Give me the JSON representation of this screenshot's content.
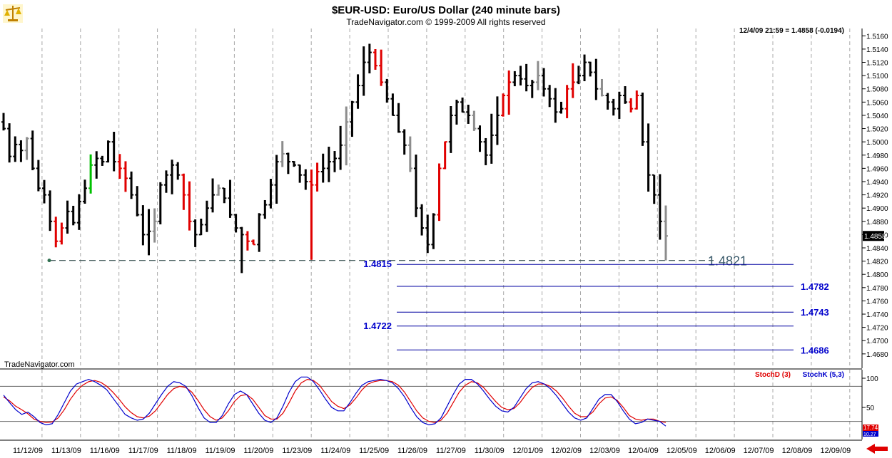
{
  "header": {
    "title": "$EUR-USD:  Euro/US Dollar  (240 minute bars)",
    "copyright": "TradeNavigator.com © 1999-2009 All rights reserved",
    "quote": "12/4/09 21:59 = 1.4858 (-0.0194)",
    "watermark": "TradeNavigator.com"
  },
  "colors": {
    "up_bar": "#000000",
    "down_bar": "#e00000",
    "neutral_bar": "#8c8c8c",
    "green_bar": "#00c000",
    "target_lines": "#0000a0",
    "target_labels": "#0000cc",
    "support_line": "#334d4d",
    "stoch_d": "#e00000",
    "stoch_k": "#0000cc"
  },
  "icons": {
    "logo": "scales-logo-icon",
    "scroll_arrow": "left-arrow-icon"
  },
  "chart_data": [
    {
      "type": "ohlc",
      "title": "$EUR-USD:  Euro/US Dollar  (240 minute bars)",
      "ylim": [
        1.4668,
        1.517
      ],
      "y_ticks": [
        "1.5160",
        "1.5140",
        "1.5120",
        "1.5100",
        "1.5080",
        "1.5060",
        "1.5040",
        "1.5020",
        "1.5000",
        "1.4980",
        "1.4960",
        "1.4940",
        "1.4920",
        "1.4900",
        "1.4880",
        "1.4860",
        "1.4840",
        "1.4820",
        "1.4800",
        "1.4780",
        "1.4760",
        "1.4740",
        "1.4720",
        "1.4700",
        "1.4680"
      ],
      "x_ticks": [
        "11/12/09",
        "11/13/09",
        "11/16/09",
        "11/17/09",
        "11/18/09",
        "11/19/09",
        "11/20/09",
        "11/23/09",
        "11/24/09",
        "11/25/09",
        "11/26/09",
        "11/27/09",
        "11/30/09",
        "12/01/09",
        "12/02/09",
        "12/03/09",
        "12/04/09",
        "12/05/09",
        "12/06/09",
        "12/07/09",
        "12/08/09",
        "12/09/09"
      ],
      "last_price_label": "1.4858",
      "grid": "vertical dashed",
      "support": {
        "value": 1.4821,
        "label": "1.4821"
      },
      "targets": [
        {
          "value": 1.4815,
          "label": "1.4815",
          "label_side": "left"
        },
        {
          "value": 1.4782,
          "label": "1.4782",
          "label_side": "right"
        },
        {
          "value": 1.4743,
          "label": "1.4743",
          "label_side": "right"
        },
        {
          "value": 1.4722,
          "label": "1.4722",
          "label_side": "left"
        },
        {
          "value": 1.4686,
          "label": "1.4686",
          "label_side": "right"
        }
      ],
      "bar_anchors_close": [
        1.502,
        1.4978,
        1.4996,
        1.4987,
        1.5005,
        1.496,
        1.493,
        1.492,
        1.488,
        1.485,
        1.487,
        1.4895,
        1.4878,
        1.491,
        1.493,
        1.4965,
        1.4975,
        1.497,
        1.5,
        1.497,
        1.496,
        1.4945,
        1.492,
        1.489,
        1.486,
        1.4865,
        1.488,
        1.4935,
        1.495,
        1.4965,
        1.495,
        1.492,
        1.488,
        1.486,
        1.4875,
        1.49,
        1.492,
        1.493,
        1.4915,
        1.489,
        1.487,
        1.486,
        1.485,
        1.4845,
        1.489,
        1.4905,
        1.4935,
        1.497,
        1.4982,
        1.497,
        1.4965,
        1.495,
        1.494,
        1.4935,
        1.4955,
        1.496,
        1.497,
        1.4975,
        1.4995,
        1.503,
        1.506,
        1.5085,
        1.512,
        1.5135,
        1.5115,
        1.509,
        1.5065,
        1.504,
        1.5015,
        1.4995,
        1.496,
        1.49,
        1.487,
        1.4845,
        1.489,
        1.496,
        1.5,
        1.504,
        1.506,
        1.5045,
        1.504,
        1.502,
        1.5,
        1.498,
        1.501,
        1.504,
        1.507,
        1.509,
        1.51,
        1.5095,
        1.5085,
        1.509,
        1.51,
        1.508,
        1.5065,
        1.5045,
        1.505,
        1.508,
        1.509,
        1.51,
        1.512,
        1.5105,
        1.508,
        1.507,
        1.506,
        1.505,
        1.507,
        1.506,
        1.505,
        1.507,
        1.5,
        1.495,
        1.492,
        1.488,
        1.4858
      ],
      "bar_anchors_low": [
        1.496,
        1.495,
        1.496,
        1.493,
        1.486,
        1.488,
        1.4821,
        1.483,
        1.485,
        1.4855,
        1.4822,
        1.483,
        1.485,
        1.49,
        1.492,
        1.493,
        1.492,
        1.49,
        1.487,
        1.485,
        1.482,
        1.4808,
        1.484,
        1.485,
        1.485,
        1.487,
        1.49,
        1.489,
        1.487,
        1.486,
        1.484,
        1.484,
        1.486,
        1.488,
        1.486,
        1.484,
        1.48,
        1.482,
        1.483,
        1.487,
        1.49,
        1.492,
        1.493,
        1.495,
        1.493,
        1.492,
        1.489,
        1.492,
        1.494,
        1.496,
        1.498,
        1.502,
        1.505,
        1.508,
        1.506,
        1.502,
        1.496,
        1.495,
        1.483,
        1.4822,
        1.486,
        1.487,
        1.49,
        1.496,
        1.5,
        1.498,
        1.497,
        1.498,
        1.497,
        1.5,
        1.505,
        1.506,
        1.504,
        1.504,
        1.503,
        1.504,
        1.506,
        1.503,
        1.5,
        1.494,
        1.49,
        1.486,
        1.4821
      ]
    },
    {
      "type": "line",
      "title": "Stochastic",
      "ylim": [
        0,
        100
      ],
      "y_ticks": [
        "100",
        "50"
      ],
      "guides": [
        80,
        20
      ],
      "series": [
        {
          "name": "StochD (3)",
          "color": "#e00000",
          "values": [
            62,
            55,
            46,
            40,
            33,
            24,
            20,
            18,
            19,
            26,
            40,
            58,
            72,
            82,
            88,
            90,
            87,
            80,
            70,
            58,
            45,
            35,
            28,
            26,
            29,
            38,
            52,
            66,
            76,
            80,
            78,
            70,
            56,
            40,
            28,
            22,
            26,
            38,
            54,
            64,
            66,
            58,
            44,
            30,
            24,
            24,
            34,
            52,
            72,
            86,
            92,
            90,
            82,
            68,
            54,
            46,
            42,
            48,
            60,
            74,
            84,
            88,
            90,
            90,
            88,
            82,
            70,
            54,
            38,
            26,
            20,
            18,
            22,
            34,
            52,
            70,
            82,
            88,
            86,
            78,
            66,
            54,
            44,
            40,
            42,
            52,
            66,
            78,
            84,
            84,
            80,
            72,
            60,
            46,
            34,
            28,
            28,
            36,
            50,
            60,
            62,
            56,
            44,
            30,
            24,
            22,
            24,
            24,
            20,
            18
          ]
        },
        {
          "name": "StochK (5,3)",
          "color": "#0000cc",
          "values": [
            65,
            52,
            40,
            32,
            36,
            28,
            18,
            14,
            16,
            32,
            52,
            72,
            84,
            88,
            92,
            88,
            82,
            74,
            60,
            46,
            32,
            26,
            22,
            24,
            34,
            50,
            66,
            80,
            88,
            86,
            80,
            64,
            44,
            26,
            18,
            18,
            30,
            50,
            66,
            72,
            66,
            50,
            34,
            22,
            18,
            26,
            46,
            70,
            88,
            96,
            96,
            88,
            74,
            58,
            44,
            38,
            38,
            52,
            68,
            82,
            88,
            90,
            92,
            90,
            86,
            76,
            62,
            44,
            28,
            18,
            14,
            16,
            26,
            46,
            66,
            84,
            92,
            92,
            84,
            72,
            58,
            46,
            38,
            36,
            44,
            60,
            76,
            86,
            88,
            84,
            76,
            64,
            50,
            36,
            26,
            22,
            26,
            42,
            58,
            66,
            66,
            54,
            38,
            24,
            16,
            18,
            24,
            22,
            20,
            12
          ]
        }
      ],
      "last_values": {
        "d": "17.74",
        "k": "10.27"
      }
    }
  ]
}
